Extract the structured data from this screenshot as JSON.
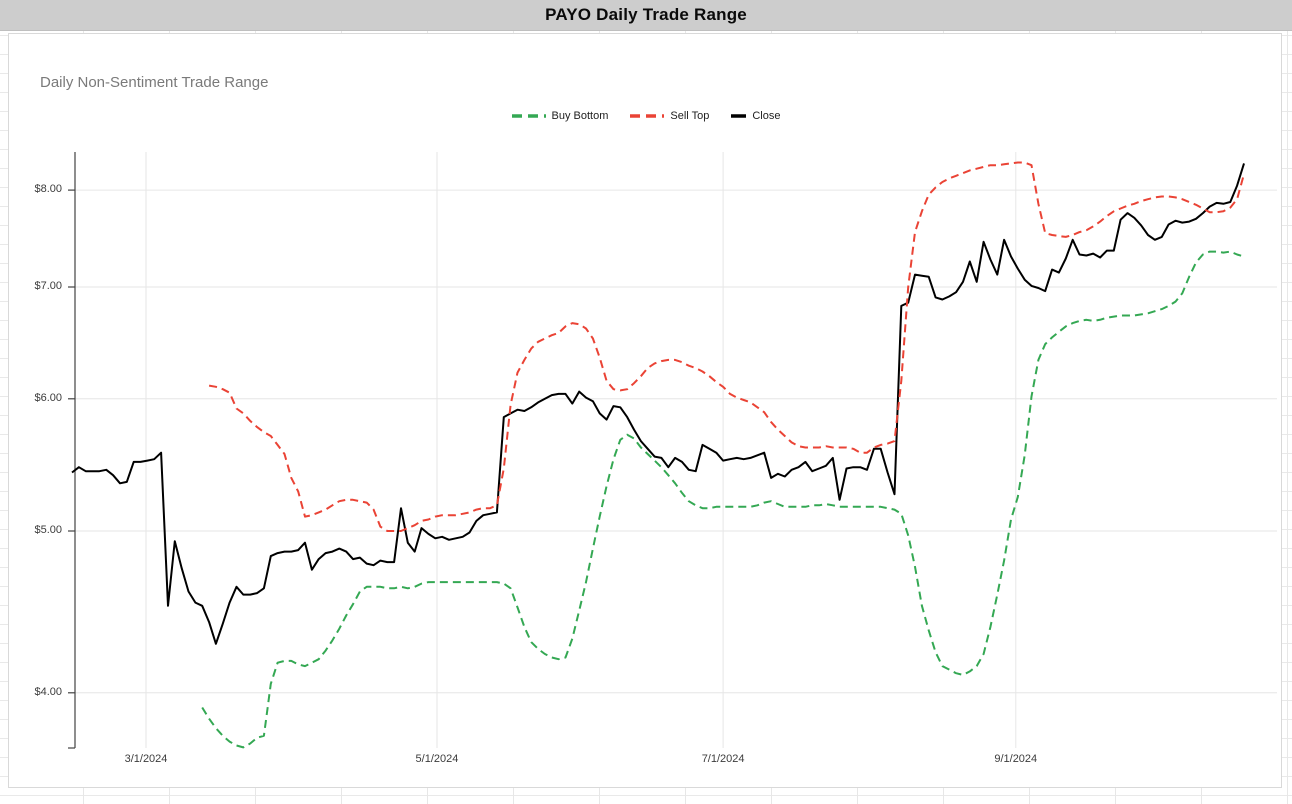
{
  "window": {
    "title": "PAYO Daily Trade Range"
  },
  "chart": {
    "subtitle": "Daily Non-Sentiment Trade Range",
    "legend": [
      {
        "label": "Buy Bottom",
        "color": "#34a853",
        "dashed": true
      },
      {
        "label": "Sell Top",
        "color": "#ea4335",
        "dashed": true
      },
      {
        "label": "Close",
        "color": "#000000",
        "dashed": false
      }
    ]
  },
  "chart_data": {
    "type": "line",
    "title": "Daily Non-Sentiment Trade Range",
    "y_scale": "log",
    "ylim": [
      3.71,
      8.43
    ],
    "grid": true,
    "legend_position": "top-center",
    "x_unit": "trading day index",
    "n_points": 172,
    "x_ticks": [
      {
        "label": "3/1/2024",
        "i": 10.8
      },
      {
        "label": "5/1/2024",
        "i": 53.25
      },
      {
        "label": "7/1/2024",
        "i": 95.0
      },
      {
        "label": "9/1/2024",
        "i": 137.7
      }
    ],
    "y_ticks": [
      {
        "label": "$8.00",
        "value": 8
      },
      {
        "label": "$7.00",
        "value": 7
      },
      {
        "label": "$6.00",
        "value": 6
      },
      {
        "label": "$5.00",
        "value": 5
      },
      {
        "label": "$4.00",
        "value": 4
      }
    ],
    "series": [
      {
        "name": "Close",
        "color": "#000000",
        "style": "solid",
        "start_index": 0,
        "values": [
          5.42,
          5.46,
          5.43,
          5.43,
          5.43,
          5.44,
          5.4,
          5.34,
          5.35,
          5.5,
          5.5,
          5.51,
          5.52,
          5.57,
          4.51,
          4.93,
          4.75,
          4.6,
          4.53,
          4.51,
          4.41,
          4.28,
          4.4,
          4.53,
          4.63,
          4.58,
          4.58,
          4.59,
          4.62,
          4.83,
          4.85,
          4.86,
          4.86,
          4.87,
          4.92,
          4.74,
          4.81,
          4.85,
          4.86,
          4.88,
          4.86,
          4.81,
          4.82,
          4.78,
          4.77,
          4.8,
          4.79,
          4.79,
          5.16,
          4.92,
          4.86,
          5.02,
          4.98,
          4.95,
          4.96,
          4.94,
          4.95,
          4.96,
          4.99,
          5.07,
          5.11,
          5.12,
          5.13,
          5.85,
          5.88,
          5.91,
          5.9,
          5.93,
          5.97,
          6.0,
          6.03,
          6.04,
          6.04,
          5.96,
          6.06,
          6.01,
          5.98,
          5.88,
          5.83,
          5.94,
          5.93,
          5.85,
          5.75,
          5.66,
          5.6,
          5.54,
          5.53,
          5.46,
          5.53,
          5.5,
          5.44,
          5.43,
          5.63,
          5.6,
          5.57,
          5.51,
          5.52,
          5.53,
          5.52,
          5.53,
          5.55,
          5.57,
          5.38,
          5.41,
          5.39,
          5.44,
          5.46,
          5.5,
          5.43,
          5.45,
          5.47,
          5.53,
          5.22,
          5.45,
          5.46,
          5.46,
          5.44,
          5.6,
          5.6,
          5.42,
          5.26,
          6.82,
          6.85,
          7.12,
          7.11,
          7.1,
          6.9,
          6.88,
          6.91,
          6.95,
          7.05,
          7.25,
          7.05,
          7.45,
          7.27,
          7.12,
          7.47,
          7.3,
          7.18,
          7.07,
          7.01,
          6.99,
          6.96,
          7.17,
          7.14,
          7.28,
          7.47,
          7.32,
          7.31,
          7.33,
          7.29,
          7.36,
          7.36,
          7.68,
          7.75,
          7.7,
          7.62,
          7.52,
          7.47,
          7.5,
          7.63,
          7.67,
          7.65,
          7.66,
          7.69,
          7.75,
          7.82,
          7.86,
          7.85,
          7.87,
          8.05,
          8.3
        ]
      },
      {
        "name": "Sell Top",
        "color": "#ea4335",
        "style": "dashed",
        "start_index": 20,
        "values": [
          6.11,
          6.1,
          6.08,
          6.05,
          5.92,
          5.88,
          5.82,
          5.77,
          5.73,
          5.7,
          5.63,
          5.56,
          5.38,
          5.28,
          5.1,
          5.11,
          5.13,
          5.15,
          5.18,
          5.21,
          5.22,
          5.22,
          5.21,
          5.2,
          5.15,
          5.03,
          5.0,
          5.0,
          5.0,
          5.02,
          5.04,
          5.07,
          5.08,
          5.1,
          5.11,
          5.11,
          5.11,
          5.12,
          5.13,
          5.15,
          5.16,
          5.16,
          5.18,
          5.45,
          5.95,
          6.22,
          6.33,
          6.43,
          6.49,
          6.52,
          6.55,
          6.57,
          6.63,
          6.66,
          6.65,
          6.61,
          6.52,
          6.35,
          6.15,
          6.08,
          6.07,
          6.08,
          6.13,
          6.19,
          6.26,
          6.3,
          6.32,
          6.33,
          6.33,
          6.31,
          6.28,
          6.26,
          6.23,
          6.19,
          6.14,
          6.1,
          6.04,
          6.01,
          5.99,
          5.97,
          5.93,
          5.89,
          5.81,
          5.75,
          5.7,
          5.65,
          5.62,
          5.61,
          5.61,
          5.61,
          5.62,
          5.61,
          5.61,
          5.61,
          5.6,
          5.57,
          5.57,
          5.61,
          5.63,
          5.64,
          5.66,
          6.15,
          7.0,
          7.55,
          7.77,
          7.95,
          8.03,
          8.09,
          8.13,
          8.16,
          8.19,
          8.22,
          8.24,
          8.26,
          8.28,
          8.28,
          8.29,
          8.3,
          8.31,
          8.31,
          8.28,
          7.85,
          7.54,
          7.52,
          7.51,
          7.5,
          7.52,
          7.55,
          7.57,
          7.61,
          7.66,
          7.72,
          7.77,
          7.8,
          7.83,
          7.85,
          7.88,
          7.9,
          7.92,
          7.93,
          7.93,
          7.92,
          7.9,
          7.87,
          7.84,
          7.8,
          7.76,
          7.76,
          7.77,
          7.81,
          7.9,
          8.18
        ]
      },
      {
        "name": "Buy Bottom",
        "color": "#34a853",
        "style": "dashed",
        "start_index": 19,
        "values": [
          3.92,
          3.86,
          3.81,
          3.77,
          3.74,
          3.72,
          3.71,
          3.73,
          3.76,
          3.77,
          4.05,
          4.17,
          4.18,
          4.18,
          4.16,
          4.15,
          4.17,
          4.19,
          4.24,
          4.3,
          4.37,
          4.45,
          4.52,
          4.6,
          4.63,
          4.63,
          4.63,
          4.62,
          4.62,
          4.63,
          4.62,
          4.63,
          4.65,
          4.66,
          4.66,
          4.66,
          4.66,
          4.66,
          4.66,
          4.66,
          4.66,
          4.66,
          4.66,
          4.66,
          4.65,
          4.62,
          4.5,
          4.38,
          4.29,
          4.25,
          4.22,
          4.2,
          4.19,
          4.2,
          4.31,
          4.48,
          4.66,
          4.88,
          5.1,
          5.32,
          5.52,
          5.67,
          5.71,
          5.68,
          5.61,
          5.56,
          5.51,
          5.46,
          5.4,
          5.34,
          5.27,
          5.21,
          5.18,
          5.16,
          5.16,
          5.17,
          5.17,
          5.17,
          5.17,
          5.17,
          5.17,
          5.18,
          5.2,
          5.21,
          5.19,
          5.17,
          5.17,
          5.17,
          5.17,
          5.18,
          5.18,
          5.19,
          5.18,
          5.17,
          5.17,
          5.17,
          5.17,
          5.17,
          5.17,
          5.17,
          5.16,
          5.15,
          5.12,
          4.97,
          4.76,
          4.51,
          4.36,
          4.23,
          4.15,
          4.13,
          4.11,
          4.1,
          4.12,
          4.15,
          4.22,
          4.38,
          4.58,
          4.8,
          5.08,
          5.24,
          5.55,
          6.02,
          6.33,
          6.47,
          6.53,
          6.58,
          6.63,
          6.66,
          6.68,
          6.69,
          6.68,
          6.69,
          6.71,
          6.72,
          6.73,
          6.73,
          6.73,
          6.74,
          6.75,
          6.77,
          6.79,
          6.82,
          6.86,
          6.94,
          7.1,
          7.24,
          7.32,
          7.35,
          7.35,
          7.34,
          7.35,
          7.32,
          7.3
        ]
      }
    ]
  }
}
